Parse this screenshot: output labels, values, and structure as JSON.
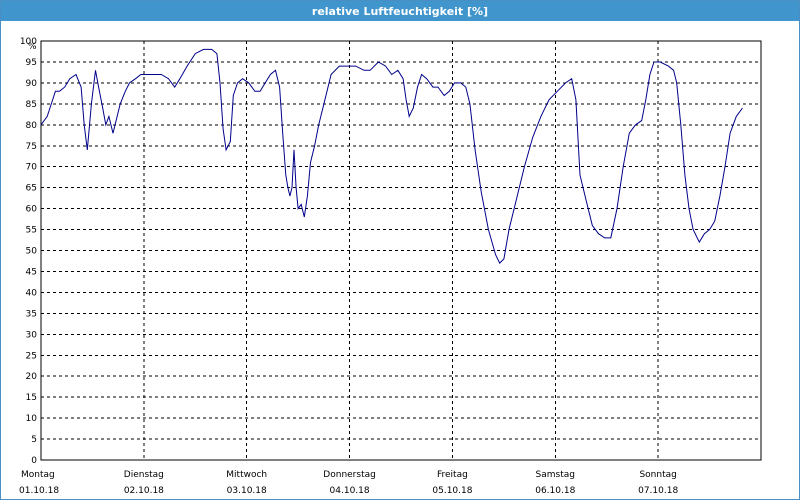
{
  "window": {
    "title": "relative Luftfeuchtigkeit [%]"
  },
  "colors": {
    "titlebar": "#3f95cc",
    "line": "#00008b",
    "grid": "#000000",
    "border": "#4a8fc4"
  },
  "chart_data": {
    "type": "line",
    "title": "relative Luftfeuchtigkeit [%]",
    "ylabel": "%",
    "ylim": [
      0,
      100
    ],
    "yticks": [
      0,
      5,
      10,
      15,
      20,
      25,
      30,
      35,
      40,
      45,
      50,
      55,
      60,
      65,
      70,
      75,
      80,
      85,
      90,
      95,
      100
    ],
    "xlim": [
      0,
      7
    ],
    "x_unit": "days from 01.10.18",
    "grid": true,
    "day_labels": [
      {
        "weekday": "Montag",
        "date": "01.10.18"
      },
      {
        "weekday": "Dienstag",
        "date": "02.10.18"
      },
      {
        "weekday": "Mittwoch",
        "date": "03.10.18"
      },
      {
        "weekday": "Donnerstag",
        "date": "04.10.18"
      },
      {
        "weekday": "Freitag",
        "date": "05.10.18"
      },
      {
        "weekday": "Samstag",
        "date": "06.10.18"
      },
      {
        "weekday": "Sonntag",
        "date": "07.10.18"
      }
    ],
    "series": [
      {
        "name": "",
        "points": [
          [
            0.0,
            80
          ],
          [
            0.06,
            82
          ],
          [
            0.1,
            85
          ],
          [
            0.14,
            88
          ],
          [
            0.18,
            88
          ],
          [
            0.23,
            89
          ],
          [
            0.28,
            91
          ],
          [
            0.34,
            92
          ],
          [
            0.39,
            89
          ],
          [
            0.42,
            80
          ],
          [
            0.45,
            74
          ],
          [
            0.49,
            85
          ],
          [
            0.53,
            93
          ],
          [
            0.56,
            89
          ],
          [
            0.6,
            84
          ],
          [
            0.63,
            80
          ],
          [
            0.66,
            82
          ],
          [
            0.7,
            78
          ],
          [
            0.73,
            81
          ],
          [
            0.77,
            85
          ],
          [
            0.82,
            88
          ],
          [
            0.86,
            90
          ],
          [
            0.92,
            91
          ],
          [
            0.97,
            92
          ],
          [
            1.03,
            92
          ],
          [
            1.1,
            92
          ],
          [
            1.17,
            92
          ],
          [
            1.24,
            91
          ],
          [
            1.3,
            89
          ],
          [
            1.35,
            91
          ],
          [
            1.42,
            94
          ],
          [
            1.5,
            97
          ],
          [
            1.58,
            98
          ],
          [
            1.66,
            98
          ],
          [
            1.71,
            97
          ],
          [
            1.74,
            90
          ],
          [
            1.77,
            79
          ],
          [
            1.8,
            74
          ],
          [
            1.84,
            76
          ],
          [
            1.87,
            87
          ],
          [
            1.91,
            90
          ],
          [
            1.96,
            91
          ],
          [
            2.02,
            90
          ],
          [
            2.08,
            88
          ],
          [
            2.13,
            88
          ],
          [
            2.18,
            90
          ],
          [
            2.23,
            92
          ],
          [
            2.28,
            93
          ],
          [
            2.32,
            89
          ],
          [
            2.35,
            78
          ],
          [
            2.38,
            68
          ],
          [
            2.4,
            65
          ],
          [
            2.42,
            63
          ],
          [
            2.44,
            65
          ],
          [
            2.46,
            74
          ],
          [
            2.48,
            65
          ],
          [
            2.5,
            60
          ],
          [
            2.53,
            61
          ],
          [
            2.56,
            58
          ],
          [
            2.59,
            63
          ],
          [
            2.62,
            71
          ],
          [
            2.66,
            75
          ],
          [
            2.7,
            80
          ],
          [
            2.75,
            85
          ],
          [
            2.82,
            92
          ],
          [
            2.9,
            94
          ],
          [
            2.98,
            94
          ],
          [
            3.06,
            94
          ],
          [
            3.14,
            93
          ],
          [
            3.2,
            93
          ],
          [
            3.28,
            95
          ],
          [
            3.35,
            94
          ],
          [
            3.41,
            92
          ],
          [
            3.47,
            93
          ],
          [
            3.52,
            91
          ],
          [
            3.55,
            86
          ],
          [
            3.58,
            82
          ],
          [
            3.62,
            84
          ],
          [
            3.66,
            89
          ],
          [
            3.7,
            92
          ],
          [
            3.75,
            91
          ],
          [
            3.81,
            89
          ],
          [
            3.86,
            89
          ],
          [
            3.92,
            87
          ],
          [
            3.97,
            88
          ],
          [
            4.02,
            90
          ],
          [
            4.08,
            90
          ],
          [
            4.13,
            89
          ],
          [
            4.17,
            85
          ],
          [
            4.22,
            74
          ],
          [
            4.28,
            64
          ],
          [
            4.35,
            55
          ],
          [
            4.42,
            49
          ],
          [
            4.46,
            47
          ],
          [
            4.5,
            48
          ],
          [
            4.55,
            55
          ],
          [
            4.62,
            62
          ],
          [
            4.7,
            70
          ],
          [
            4.78,
            77
          ],
          [
            4.86,
            82
          ],
          [
            4.94,
            86
          ],
          [
            5.02,
            88
          ],
          [
            5.1,
            90
          ],
          [
            5.16,
            91
          ],
          [
            5.2,
            86
          ],
          [
            5.24,
            68
          ],
          [
            5.3,
            62
          ],
          [
            5.36,
            56
          ],
          [
            5.42,
            54
          ],
          [
            5.48,
            53
          ],
          [
            5.54,
            53
          ],
          [
            5.6,
            60
          ],
          [
            5.66,
            70
          ],
          [
            5.72,
            78
          ],
          [
            5.78,
            80
          ],
          [
            5.84,
            81
          ],
          [
            5.88,
            86
          ],
          [
            5.92,
            92
          ],
          [
            5.96,
            95
          ],
          [
            6.02,
            95
          ],
          [
            6.1,
            94
          ],
          [
            6.15,
            93
          ],
          [
            6.18,
            90
          ],
          [
            6.22,
            80
          ],
          [
            6.26,
            68
          ],
          [
            6.3,
            60
          ],
          [
            6.34,
            55
          ],
          [
            6.4,
            52
          ],
          [
            6.45,
            54
          ],
          [
            6.5,
            55
          ],
          [
            6.55,
            57
          ],
          [
            6.6,
            63
          ],
          [
            6.65,
            70
          ],
          [
            6.7,
            78
          ],
          [
            6.76,
            82
          ],
          [
            6.82,
            84
          ]
        ]
      }
    ]
  }
}
